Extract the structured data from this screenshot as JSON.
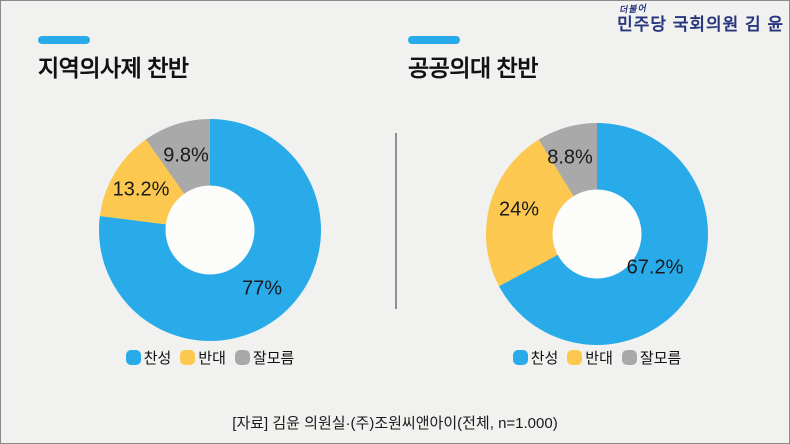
{
  "header": {
    "logo_script": "더불어",
    "logo_main": "민주당 국회의원 김 윤"
  },
  "colors": {
    "accent_blue": "#29abea",
    "agree_blue": "#29abea",
    "oppose_yellow": "#fcc84f",
    "unsure_gray": "#a9a9a9",
    "brand_navy": "#28367e",
    "background": "#f1f1ef",
    "hole_white": "#fcfcfb"
  },
  "chart_data": [
    {
      "type": "pie",
      "subtype": "donut",
      "title": "지역의사제 찬반",
      "categories": [
        "찬성",
        "반대",
        "잘모름"
      ],
      "values": [
        77,
        13.2,
        9.8
      ],
      "data_labels": [
        "77%",
        "13.2%",
        "9.8%"
      ],
      "segment_colors": [
        "#29abea",
        "#fcc84f",
        "#a9a9a9"
      ],
      "start_angle_deg": 0,
      "direction": "clockwise",
      "hole_ratio": 0.4,
      "legend_position": "bottom"
    },
    {
      "type": "pie",
      "subtype": "donut",
      "title": "공공의대 찬반",
      "categories": [
        "찬성",
        "반대",
        "잘모름"
      ],
      "values": [
        67.2,
        24,
        8.8
      ],
      "data_labels": [
        "67.2%",
        "24%",
        "8.8%"
      ],
      "segment_colors": [
        "#29abea",
        "#fcc84f",
        "#a9a9a9"
      ],
      "start_angle_deg": 0,
      "direction": "clockwise",
      "hole_ratio": 0.4,
      "legend_position": "bottom"
    }
  ],
  "footer": {
    "source": "[자료] 김윤 의원실·(주)조원씨앤아이(전체, n=1.000)"
  }
}
